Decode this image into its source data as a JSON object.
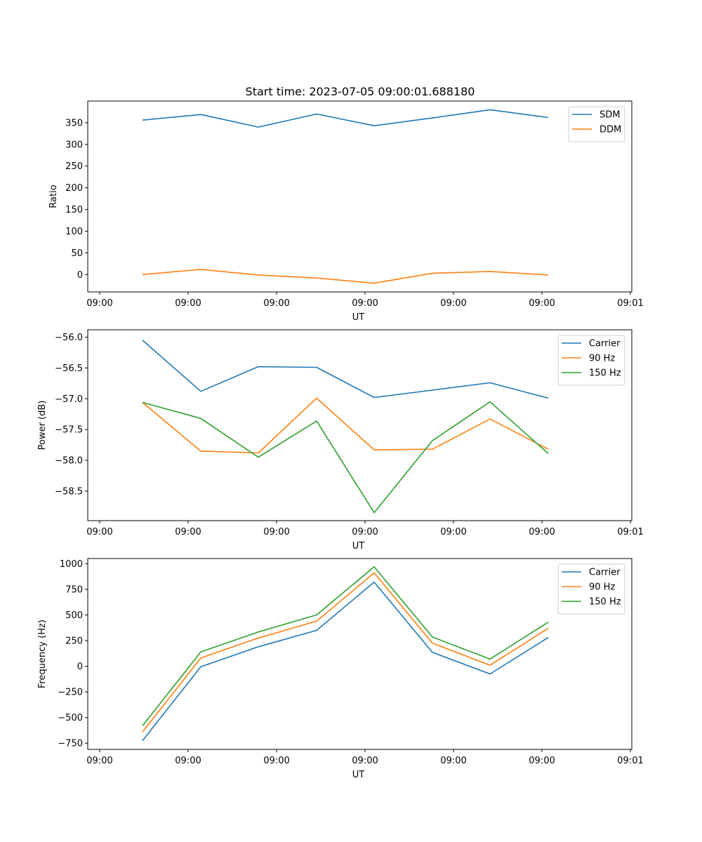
{
  "title": "Start time: 2023-07-05 09:00:01.688180",
  "chart_data": [
    {
      "type": "line",
      "title": "Start time: 2023-07-05 09:00:01.688180",
      "xlabel": "UT",
      "ylabel": "Ratio",
      "x_tick_labels": [
        "09:00",
        "09:00",
        "09:00",
        "09:00",
        "09:00",
        "09:00",
        "09:00",
        "09:01"
      ],
      "y_ticks": [
        0,
        50,
        100,
        150,
        200,
        250,
        300,
        350
      ],
      "y_tick_labels": [
        "0",
        "50",
        "100",
        "150",
        "200",
        "250",
        "300",
        "350"
      ],
      "ylim": [
        -40,
        400
      ],
      "legend_position": "top-right",
      "series": [
        {
          "name": "SDM",
          "color": "#1f77b4",
          "values": [
            356,
            369,
            340,
            370,
            343,
            361,
            380,
            362
          ]
        },
        {
          "name": "DDM",
          "color": "#ff7f0e",
          "values": [
            0,
            12,
            -1,
            -8,
            -20,
            3,
            7,
            -1
          ]
        }
      ]
    },
    {
      "type": "line",
      "title": "",
      "xlabel": "UT",
      "ylabel": "Power (dB)",
      "x_tick_labels": [
        "09:00",
        "09:00",
        "09:00",
        "09:00",
        "09:00",
        "09:00",
        "09:00",
        "09:01"
      ],
      "y_ticks": [
        -56.0,
        -56.5,
        -57.0,
        -57.5,
        -58.0,
        -58.5
      ],
      "y_tick_labels": [
        "−56.0",
        "−56.5",
        "−57.0",
        "−57.5",
        "−58.0",
        "−58.5"
      ],
      "ylim": [
        -58.98,
        -55.88
      ],
      "legend_position": "top-right",
      "series": [
        {
          "name": "Carrier",
          "color": "#1f77b4",
          "values": [
            -56.05,
            -56.88,
            -56.48,
            -56.49,
            -56.98,
            -56.86,
            -56.74,
            -56.99
          ]
        },
        {
          "name": "90 Hz",
          "color": "#ff7f0e",
          "values": [
            -57.06,
            -57.85,
            -57.88,
            -56.99,
            -57.83,
            -57.82,
            -57.33,
            -57.82
          ]
        },
        {
          "name": "150 Hz",
          "color": "#2ca02c",
          "values": [
            -57.06,
            -57.32,
            -57.95,
            -57.36,
            -58.85,
            -57.68,
            -57.05,
            -57.89
          ]
        }
      ]
    },
    {
      "type": "line",
      "title": "",
      "xlabel": "UT",
      "ylabel": "Frequency (Hz)",
      "x_tick_labels": [
        "09:00",
        "09:00",
        "09:00",
        "09:00",
        "09:00",
        "09:00",
        "09:00",
        "09:01"
      ],
      "y_ticks": [
        1000,
        750,
        500,
        250,
        0,
        -250,
        -500,
        -750
      ],
      "y_tick_labels": [
        "1000",
        "750",
        "500",
        "250",
        "0",
        "−250",
        "−500",
        "−750"
      ],
      "ylim": [
        -810,
        1050
      ],
      "legend_position": "top-right",
      "series": [
        {
          "name": "Carrier",
          "color": "#1f77b4",
          "values": [
            -725,
            -5,
            190,
            350,
            820,
            135,
            -75,
            280
          ]
        },
        {
          "name": "90 Hz",
          "color": "#ff7f0e",
          "values": [
            -640,
            80,
            275,
            440,
            910,
            225,
            10,
            370
          ]
        },
        {
          "name": "150 Hz",
          "color": "#2ca02c",
          "values": [
            -580,
            140,
            335,
            500,
            970,
            285,
            70,
            430
          ]
        }
      ]
    }
  ]
}
